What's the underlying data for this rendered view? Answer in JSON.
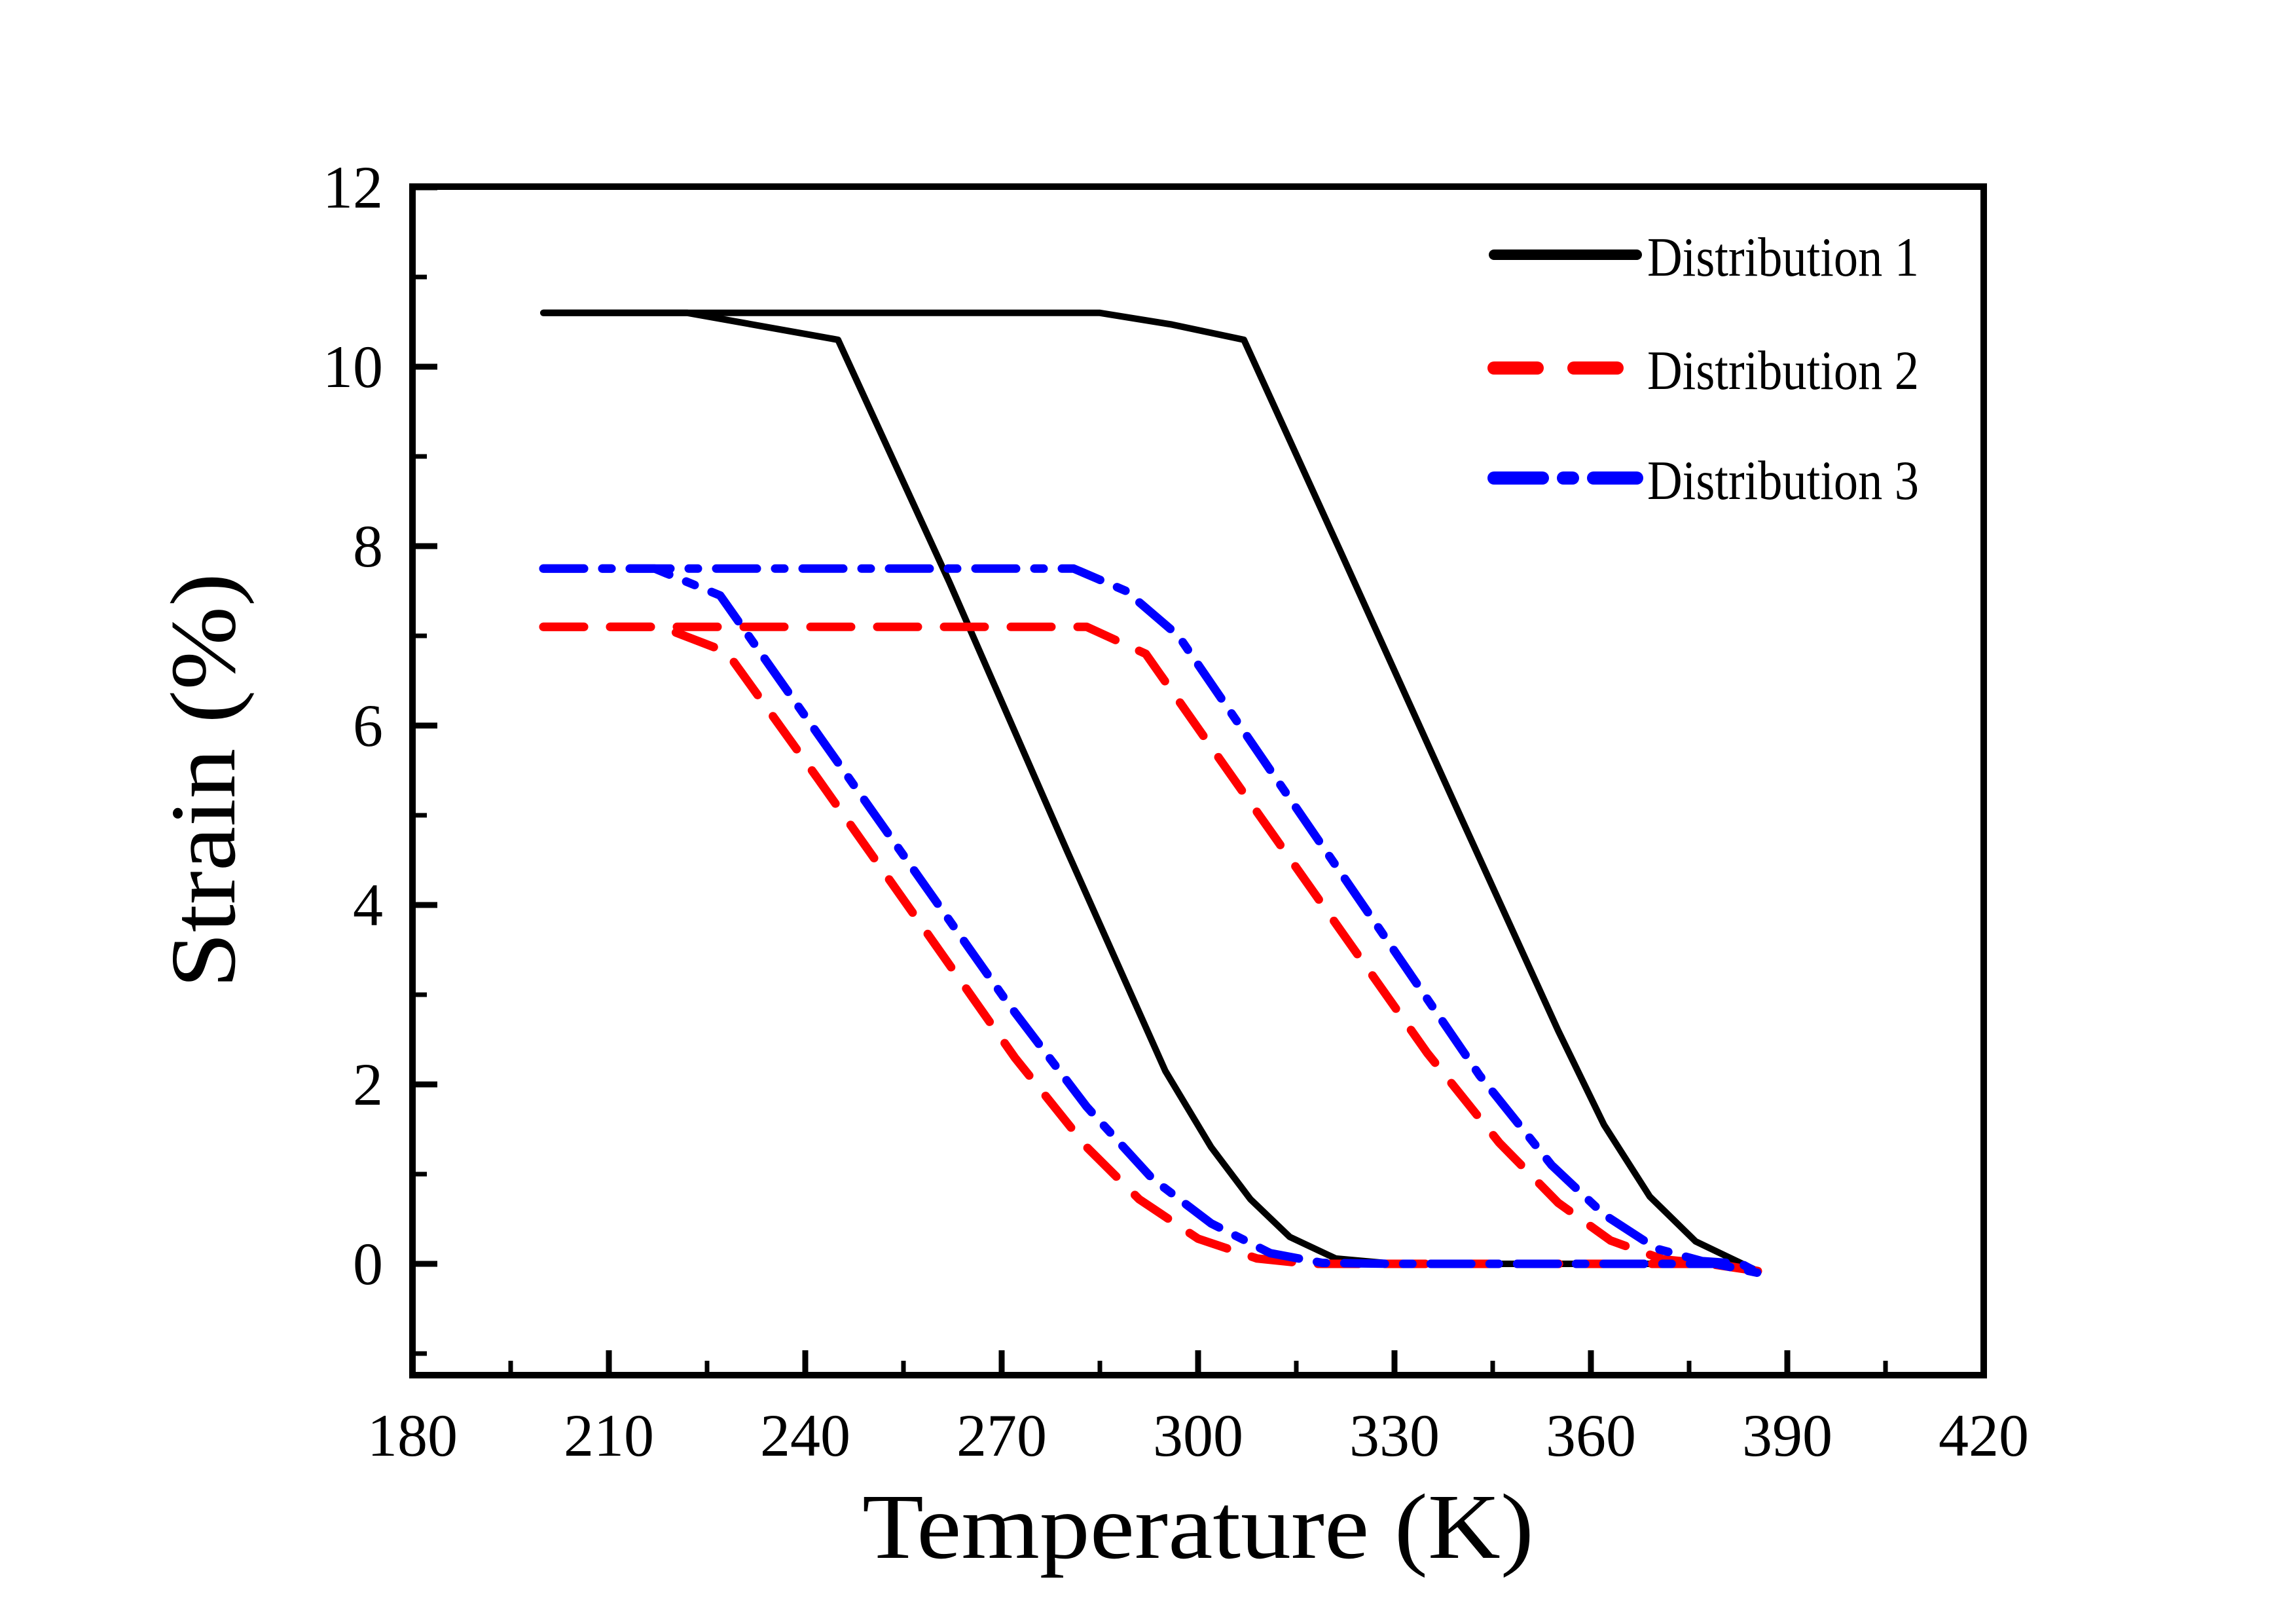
{
  "figure": {
    "background_color": "#ffffff",
    "frame_color": "#000000"
  },
  "chart_data": {
    "type": "line",
    "title": "",
    "xlabel": "Temperature (K)",
    "ylabel": "Strain (%)",
    "xlim": [
      180,
      420
    ],
    "ylim": [
      -1.25,
      12
    ],
    "grid": false,
    "legend_position": "upper right",
    "x_ticks": [
      180,
      210,
      240,
      270,
      300,
      330,
      360,
      390,
      420
    ],
    "x_tick_labels": [
      "180",
      "210",
      "240",
      "270",
      "300",
      "330",
      "360",
      "390",
      "420"
    ],
    "x_minor_ticks": [
      195,
      225,
      255,
      285,
      315,
      345,
      375,
      405
    ],
    "y_ticks": [
      0,
      2,
      4,
      6,
      8,
      10,
      12
    ],
    "y_tick_labels": [
      "0",
      "2",
      "4",
      "6",
      "8",
      "10",
      "12"
    ],
    "y_minor_ticks": [
      -1,
      1,
      3,
      5,
      7,
      9,
      11
    ],
    "series": [
      {
        "name": "Distribution 1",
        "color": "#000000",
        "line_style": "solid",
        "line_width": 10,
        "description": "thermal hysteresis loop, upper plateau 10.6 %, transformation ~245-320 K on cooling branch and ~307-383 K on heating branch",
        "branches": {
          "cooling": [
            [
              200,
              10.6
            ],
            [
              222,
              10.6
            ],
            [
              245,
              10.3
            ],
            [
              262,
              7.6
            ],
            [
              280,
              4.6
            ],
            [
              295,
              2.15
            ],
            [
              302,
              1.3
            ],
            [
              308,
              0.72
            ],
            [
              314,
              0.3
            ],
            [
              321,
              0.06
            ],
            [
              330,
              0
            ],
            [
              379,
              0
            ],
            [
              383,
              -0.02
            ],
            [
              385.5,
              -0.08
            ]
          ],
          "heating": [
            [
              200,
              10.6
            ],
            [
              285,
              10.6
            ],
            [
              296,
              10.47
            ],
            [
              307,
              10.3
            ],
            [
              322,
              7.9
            ],
            [
              340,
              5.0
            ],
            [
              355,
              2.6
            ],
            [
              362,
              1.55
            ],
            [
              369,
              0.75
            ],
            [
              376,
              0.25
            ],
            [
              382,
              0.04
            ],
            [
              385.5,
              -0.08
            ]
          ]
        }
      },
      {
        "name": "Distribution 2",
        "color": "#ff0000",
        "line_style": "dashed",
        "line_width": 13,
        "description": "thermal hysteresis loop, upper plateau 7.1 %, transformation ~228-315 K on cooling branch and ~292-372 K on heating branch",
        "branches": {
          "cooling": [
            [
              200,
              7.1
            ],
            [
              218,
              7.1
            ],
            [
              228,
              6.82
            ],
            [
              242,
              5.4
            ],
            [
              258,
              3.75
            ],
            [
              272,
              2.3
            ],
            [
              283,
              1.3
            ],
            [
              291,
              0.72
            ],
            [
              300,
              0.28
            ],
            [
              309,
              0.06
            ],
            [
              317,
              0
            ],
            [
              379,
              0
            ],
            [
              385.5,
              -0.08
            ]
          ],
          "heating": [
            [
              200,
              7.1
            ],
            [
              283,
              7.1
            ],
            [
              292,
              6.8
            ],
            [
              305,
              5.45
            ],
            [
              320,
              3.9
            ],
            [
              335,
              2.35
            ],
            [
              346,
              1.35
            ],
            [
              355,
              0.68
            ],
            [
              363,
              0.26
            ],
            [
              371,
              0.05
            ],
            [
              378,
              0
            ],
            [
              385.5,
              -0.08
            ]
          ]
        }
      },
      {
        "name": "Distribution 3",
        "color": "#0000ff",
        "line_style": "dashdot",
        "line_width": 13,
        "description": "thermal hysteresis loop, upper plateau 7.75 %, transformation ~227-318 K on cooling branch and ~297-375 K on heating branch",
        "branches": {
          "cooling": [
            [
              200,
              7.75
            ],
            [
              217,
              7.75
            ],
            [
              227,
              7.45
            ],
            [
              241,
              6.0
            ],
            [
              256,
              4.45
            ],
            [
              271,
              2.9
            ],
            [
              283,
              1.75
            ],
            [
              293,
              0.95
            ],
            [
              302,
              0.45
            ],
            [
              311,
              0.12
            ],
            [
              319,
              0.01
            ],
            [
              330,
              0
            ],
            [
              379,
              0
            ],
            [
              385.5,
              -0.1
            ]
          ],
          "heating": [
            [
              200,
              7.75
            ],
            [
              281,
              7.75
            ],
            [
              289,
              7.5
            ],
            [
              297,
              7.0
            ],
            [
              312,
              5.4
            ],
            [
              328,
              3.7
            ],
            [
              343,
              2.1
            ],
            [
              354,
              1.1
            ],
            [
              362,
              0.55
            ],
            [
              370,
              0.17
            ],
            [
              377,
              0.03
            ],
            [
              383,
              0
            ],
            [
              385.5,
              -0.1
            ]
          ]
        }
      }
    ]
  },
  "legend": {
    "items": [
      {
        "label": "Distribution 1"
      },
      {
        "label": "Distribution 2"
      },
      {
        "label": "Distribution 3"
      }
    ]
  }
}
